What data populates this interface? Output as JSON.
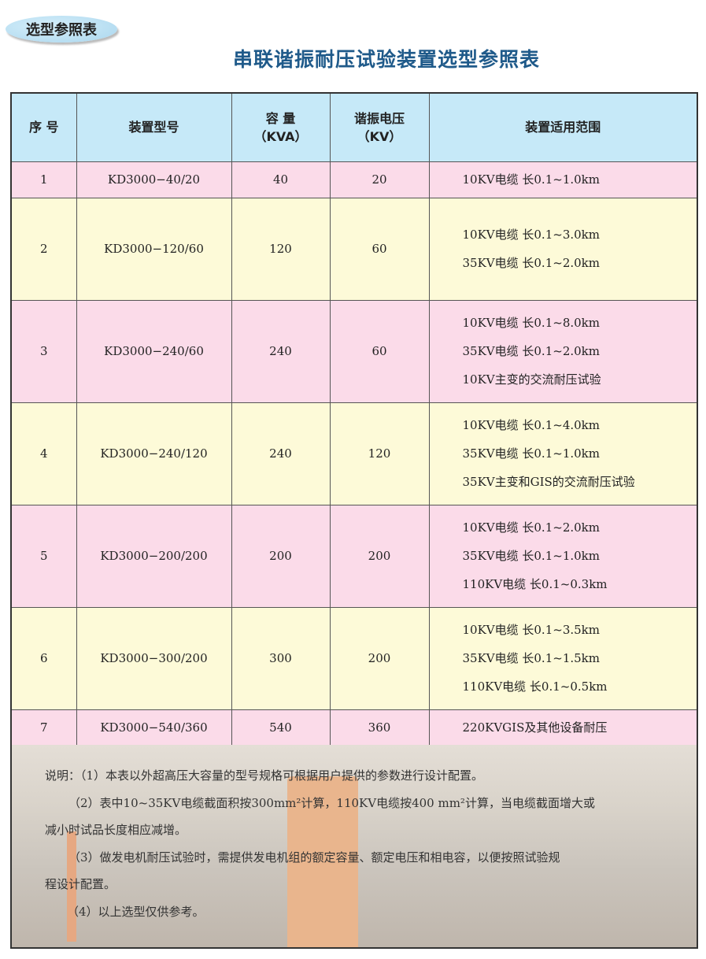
{
  "badge": "选型参照表",
  "title": "串联谐振耐压试验装置选型参照表",
  "headers": {
    "seq": "序 号",
    "model": "装置型号",
    "capacity": "容 量",
    "capacity_unit": "（KVA）",
    "voltage": "谐振电压",
    "voltage_unit": "（KV）",
    "scope": "装置适用范围"
  },
  "rows": [
    {
      "seq": "1",
      "model": "KD3000−40/20",
      "capacity": "40",
      "voltage": "20",
      "scope": [
        "10KV电缆 长0.1~1.0km"
      ]
    },
    {
      "seq": "2",
      "model": "KD3000−120/60",
      "capacity": "120",
      "voltage": "60",
      "scope": [
        "10KV电缆 长0.1~3.0km",
        "35KV电缆 长0.1~2.0km"
      ]
    },
    {
      "seq": "3",
      "model": "KD3000−240/60",
      "capacity": "240",
      "voltage": "60",
      "scope": [
        "10KV电缆 长0.1~8.0km",
        "35KV电缆 长0.1~2.0km",
        "10KV主变的交流耐压试验"
      ]
    },
    {
      "seq": "4",
      "model": "KD3000−240/120",
      "capacity": "240",
      "voltage": "120",
      "scope": [
        "10KV电缆 长0.1~4.0km",
        "35KV电缆 长0.1~1.0km",
        "35KV主变和GIS的交流耐压试验"
      ]
    },
    {
      "seq": "5",
      "model": "KD3000−200/200",
      "capacity": "200",
      "voltage": "200",
      "scope": [
        "10KV电缆 长0.1~2.0km",
        "35KV电缆 长0.1~1.0km",
        "110KV电缆 长0.1~0.3km"
      ]
    },
    {
      "seq": "6",
      "model": "KD3000−300/200",
      "capacity": "300",
      "voltage": "200",
      "scope": [
        "10KV电缆 长0.1~3.5km",
        "35KV电缆 长0.1~1.5km",
        "110KV电缆 长0.1~0.5km"
      ]
    },
    {
      "seq": "7",
      "model": "KD3000−540/360",
      "capacity": "540",
      "voltage": "360",
      "scope": [
        "220KVGIS及其他设备耐压"
      ]
    }
  ],
  "notes": [
    "说明：（1）本表以外超高压大容量的型号规格可根据用户提供的参数进行设计配置。",
    "（2）表中10~35KV电缆截面积按300mm²计算，110KV电缆按400 mm²计算，当电缆截面增大或",
    "减小时试品长度相应减增。",
    "（3）做发电机耐压试验时，需提供发电机组的额定容量、额定电压和相电容，以便按照试验规",
    "程设计配置。",
    "（4）以上选型仅供参考。"
  ],
  "colors": {
    "header": "#c6e9f8",
    "pink": "#fbdbe9",
    "yellow": "#fdfad8",
    "title": "#1f5a8a"
  }
}
